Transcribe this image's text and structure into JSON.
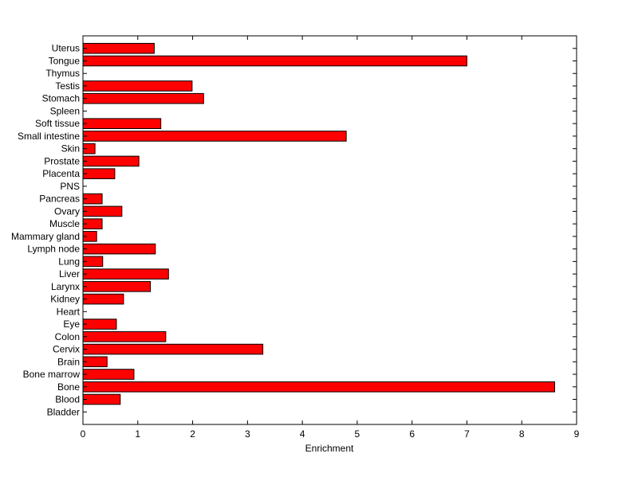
{
  "chart_data": {
    "type": "bar",
    "orientation": "horizontal",
    "categories": [
      "Bladder",
      "Blood",
      "Bone",
      "Bone marrow",
      "Brain",
      "Cervix",
      "Colon",
      "Eye",
      "Heart",
      "Kidney",
      "Larynx",
      "Liver",
      "Lung",
      "Lymph node",
      "Mammary gland",
      "Muscle",
      "Ovary",
      "Pancreas",
      "PNS",
      "Placenta",
      "Prostate",
      "Skin",
      "Small intestine",
      "Soft tissue",
      "Spleen",
      "Stomach",
      "Testis",
      "Thymus",
      "Tongue",
      "Uterus"
    ],
    "values": [
      0,
      0.68,
      8.6,
      0.93,
      0.44,
      3.28,
      1.51,
      0.61,
      0,
      0.74,
      1.23,
      1.56,
      0.36,
      1.32,
      0.25,
      0.35,
      0.71,
      0.35,
      0,
      0.58,
      1.02,
      0.22,
      4.8,
      1.42,
      0,
      2.2,
      1.99,
      0,
      7.0,
      1.3
    ],
    "xlabel": "Enrichment",
    "ylabel": "",
    "title": "",
    "xlim": [
      0,
      9
    ],
    "xticks": [
      "0",
      "1",
      "2",
      "3",
      "4",
      "5",
      "6",
      "7",
      "8",
      "9"
    ],
    "bar_color": "#ff0000",
    "edge_color": "#000000",
    "grid": false,
    "legend": "none"
  }
}
